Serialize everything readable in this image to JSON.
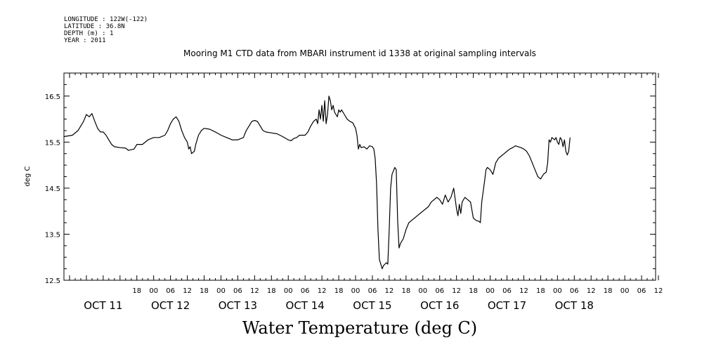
{
  "metadata": {
    "longitude": "LONGITUDE : 122W(-122)",
    "latitude": "LATITUDE : 36.8N",
    "depth": "DEPTH (m) : 1",
    "year": "YEAR : 2011"
  },
  "chart_data": {
    "type": "line",
    "title": "Mooring M1 CTD data from MBARI instrument id 1338 at original sampling intervals",
    "bottom_title": "Water Temperature (deg C)",
    "ylabel": "deg C",
    "ylim": [
      12.5,
      17.0
    ],
    "y_ticks": [
      12.5,
      13.5,
      14.5,
      15.5,
      16.5
    ],
    "xlim": [
      -8,
      203
    ],
    "x_unit": "hours since OCT 11 2011 00:00",
    "hour_ticks": [
      {
        "h": 18,
        "label": "18"
      },
      {
        "h": 24,
        "label": "00"
      },
      {
        "h": 30,
        "label": "06"
      },
      {
        "h": 36,
        "label": "12"
      },
      {
        "h": 42,
        "label": "18"
      },
      {
        "h": 48,
        "label": "00"
      },
      {
        "h": 54,
        "label": "06"
      },
      {
        "h": 60,
        "label": "12"
      },
      {
        "h": 66,
        "label": "18"
      },
      {
        "h": 72,
        "label": "00"
      },
      {
        "h": 78,
        "label": "06"
      },
      {
        "h": 84,
        "label": "12"
      },
      {
        "h": 90,
        "label": "18"
      },
      {
        "h": 96,
        "label": "00"
      },
      {
        "h": 102,
        "label": "06"
      },
      {
        "h": 108,
        "label": "12"
      },
      {
        "h": 114,
        "label": "18"
      },
      {
        "h": 120,
        "label": "00"
      },
      {
        "h": 126,
        "label": "06"
      },
      {
        "h": 132,
        "label": "12"
      },
      {
        "h": 138,
        "label": "18"
      },
      {
        "h": 144,
        "label": "00"
      },
      {
        "h": 150,
        "label": "06"
      },
      {
        "h": 156,
        "label": "12"
      },
      {
        "h": 162,
        "label": "18"
      },
      {
        "h": 168,
        "label": "00"
      },
      {
        "h": 174,
        "label": "06"
      },
      {
        "h": 180,
        "label": "12"
      },
      {
        "h": 186,
        "label": "18"
      },
      {
        "h": 192,
        "label": "00"
      },
      {
        "h": 198,
        "label": "06"
      },
      {
        "h": 204,
        "label": "12"
      }
    ],
    "date_labels": [
      {
        "h": 6,
        "label": "OCT 11"
      },
      {
        "h": 30,
        "label": "OCT 12"
      },
      {
        "h": 54,
        "label": "OCT 13"
      },
      {
        "h": 78,
        "label": "OCT 14"
      },
      {
        "h": 102,
        "label": "OCT 15"
      },
      {
        "h": 126,
        "label": "OCT 16"
      },
      {
        "h": 150,
        "label": "OCT 17"
      },
      {
        "h": 174,
        "label": "OCT 18"
      }
    ],
    "series": [
      {
        "color": "#000000",
        "points": [
          [
            -8,
            15.62
          ],
          [
            -5,
            15.65
          ],
          [
            -3,
            15.75
          ],
          [
            -1,
            15.95
          ],
          [
            0,
            16.1
          ],
          [
            1,
            16.05
          ],
          [
            2,
            16.12
          ],
          [
            3,
            15.95
          ],
          [
            4,
            15.8
          ],
          [
            5,
            15.72
          ],
          [
            6,
            15.72
          ],
          [
            7,
            15.65
          ],
          [
            8,
            15.55
          ],
          [
            9,
            15.45
          ],
          [
            10,
            15.4
          ],
          [
            12,
            15.38
          ],
          [
            14,
            15.37
          ],
          [
            15,
            15.32
          ],
          [
            17,
            15.35
          ],
          [
            18,
            15.45
          ],
          [
            20,
            15.45
          ],
          [
            22,
            15.55
          ],
          [
            24,
            15.6
          ],
          [
            26,
            15.6
          ],
          [
            28,
            15.65
          ],
          [
            29,
            15.75
          ],
          [
            30,
            15.9
          ],
          [
            31,
            16.0
          ],
          [
            32,
            16.05
          ],
          [
            33,
            15.95
          ],
          [
            34,
            15.75
          ],
          [
            35,
            15.6
          ],
          [
            36,
            15.5
          ],
          [
            36.5,
            15.35
          ],
          [
            37,
            15.4
          ],
          [
            37.5,
            15.25
          ],
          [
            38.5,
            15.3
          ],
          [
            39,
            15.45
          ],
          [
            40,
            15.65
          ],
          [
            41,
            15.75
          ],
          [
            42,
            15.8
          ],
          [
            44,
            15.78
          ],
          [
            46,
            15.72
          ],
          [
            48,
            15.65
          ],
          [
            50,
            15.6
          ],
          [
            52,
            15.55
          ],
          [
            54,
            15.55
          ],
          [
            56,
            15.6
          ],
          [
            57,
            15.75
          ],
          [
            58,
            15.85
          ],
          [
            59,
            15.95
          ],
          [
            60,
            15.97
          ],
          [
            61,
            15.95
          ],
          [
            62,
            15.85
          ],
          [
            63,
            15.75
          ],
          [
            64,
            15.72
          ],
          [
            66,
            15.7
          ],
          [
            68,
            15.68
          ],
          [
            70,
            15.62
          ],
          [
            72,
            15.55
          ],
          [
            73,
            15.53
          ],
          [
            74,
            15.58
          ],
          [
            75,
            15.6
          ],
          [
            76,
            15.65
          ],
          [
            78,
            15.65
          ],
          [
            79,
            15.72
          ],
          [
            80,
            15.85
          ],
          [
            81,
            15.95
          ],
          [
            82,
            16.0
          ],
          [
            82.5,
            15.9
          ],
          [
            83,
            16.2
          ],
          [
            83.5,
            16.0
          ],
          [
            84,
            16.3
          ],
          [
            84.5,
            15.95
          ],
          [
            85,
            16.4
          ],
          [
            85.5,
            15.9
          ],
          [
            86,
            16.1
          ],
          [
            86.5,
            16.5
          ],
          [
            87,
            16.4
          ],
          [
            87.5,
            16.2
          ],
          [
            88,
            16.3
          ],
          [
            88.5,
            16.15
          ],
          [
            89,
            16.1
          ],
          [
            89.5,
            16.05
          ],
          [
            90,
            16.2
          ],
          [
            90.5,
            16.15
          ],
          [
            91,
            16.2
          ],
          [
            92,
            16.1
          ],
          [
            93,
            16.0
          ],
          [
            94,
            15.95
          ],
          [
            95,
            15.92
          ],
          [
            96,
            15.8
          ],
          [
            96.5,
            15.65
          ],
          [
            97,
            15.35
          ],
          [
            97.5,
            15.45
          ],
          [
            98,
            15.38
          ],
          [
            99,
            15.4
          ],
          [
            100,
            15.35
          ],
          [
            101,
            15.42
          ],
          [
            102,
            15.4
          ],
          [
            102.5,
            15.35
          ],
          [
            103,
            15.15
          ],
          [
            103.5,
            14.6
          ],
          [
            104,
            13.6
          ],
          [
            104.5,
            12.95
          ],
          [
            105,
            12.85
          ],
          [
            105.5,
            12.75
          ],
          [
            106,
            12.82
          ],
          [
            107,
            12.88
          ],
          [
            107.5,
            12.85
          ],
          [
            108,
            13.6
          ],
          [
            108.5,
            14.5
          ],
          [
            109,
            14.8
          ],
          [
            110,
            14.95
          ],
          [
            110.5,
            14.9
          ],
          [
            111,
            13.8
          ],
          [
            111.5,
            13.2
          ],
          [
            112,
            13.3
          ],
          [
            113,
            13.4
          ],
          [
            114,
            13.6
          ],
          [
            115,
            13.75
          ],
          [
            116,
            13.8
          ],
          [
            117,
            13.85
          ],
          [
            118,
            13.9
          ],
          [
            119,
            13.95
          ],
          [
            120,
            14.0
          ],
          [
            121,
            14.05
          ],
          [
            122,
            14.1
          ],
          [
            123,
            14.2
          ],
          [
            124,
            14.25
          ],
          [
            125,
            14.3
          ],
          [
            126,
            14.25
          ],
          [
            127,
            14.15
          ],
          [
            128,
            14.35
          ],
          [
            129,
            14.2
          ],
          [
            130,
            14.3
          ],
          [
            131,
            14.5
          ],
          [
            132,
            14.05
          ],
          [
            132.5,
            13.9
          ],
          [
            133,
            14.15
          ],
          [
            133.5,
            13.95
          ],
          [
            134,
            14.2
          ],
          [
            135,
            14.3
          ],
          [
            136,
            14.25
          ],
          [
            137,
            14.2
          ],
          [
            138,
            13.85
          ],
          [
            139,
            13.8
          ],
          [
            140,
            13.78
          ],
          [
            140.5,
            13.75
          ],
          [
            141,
            14.2
          ],
          [
            142,
            14.65
          ],
          [
            142.5,
            14.9
          ],
          [
            143,
            14.95
          ],
          [
            144,
            14.9
          ],
          [
            145,
            14.8
          ],
          [
            146,
            15.05
          ],
          [
            147,
            15.15
          ],
          [
            148,
            15.2
          ],
          [
            149,
            15.25
          ],
          [
            150,
            15.3
          ],
          [
            151,
            15.35
          ],
          [
            152,
            15.38
          ],
          [
            153,
            15.42
          ],
          [
            154,
            15.4
          ],
          [
            155,
            15.38
          ],
          [
            156,
            15.35
          ],
          [
            157,
            15.3
          ],
          [
            158,
            15.2
          ],
          [
            159,
            15.05
          ],
          [
            160,
            14.9
          ],
          [
            161,
            14.75
          ],
          [
            162,
            14.7
          ],
          [
            163,
            14.8
          ],
          [
            164,
            14.85
          ],
          [
            164.5,
            15.05
          ],
          [
            165,
            15.55
          ],
          [
            165.5,
            15.5
          ],
          [
            166,
            15.6
          ],
          [
            167,
            15.55
          ],
          [
            167.5,
            15.6
          ],
          [
            168,
            15.5
          ],
          [
            168.5,
            15.45
          ],
          [
            169,
            15.6
          ],
          [
            169.5,
            15.55
          ],
          [
            170,
            15.4
          ],
          [
            170.5,
            15.55
          ],
          [
            171,
            15.3
          ],
          [
            171.5,
            15.22
          ],
          [
            172,
            15.3
          ],
          [
            172.5,
            15.6
          ]
        ]
      }
    ]
  }
}
